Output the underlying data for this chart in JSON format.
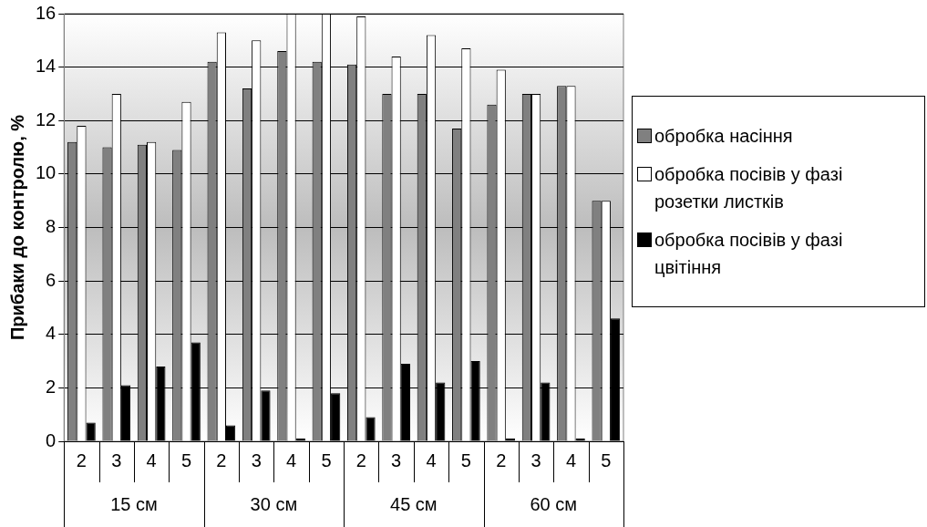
{
  "chart_data": {
    "type": "bar",
    "ylabel": "Прибаки до контролю, %",
    "categories": [
      "2",
      "3",
      "4",
      "5",
      "2",
      "3",
      "4",
      "5",
      "2",
      "3",
      "4",
      "5",
      "2",
      "3",
      "4",
      "5"
    ],
    "annotations": [
      "15 см",
      "30 см",
      "45 см",
      "60 см"
    ],
    "series": [
      {
        "name": "обробка насіння",
        "color": "#808080",
        "values": [
          11.2,
          11.0,
          11.1,
          10.9,
          14.2,
          13.2,
          14.6,
          14.2,
          14.1,
          13.0,
          13.0,
          11.7,
          12.6,
          13.0,
          13.3,
          9.0
        ]
      },
      {
        "name": "обробка посівів у фазі розетки листків",
        "color": "#ffffff",
        "values": [
          11.8,
          13.0,
          11.2,
          12.7,
          15.3,
          15.0,
          16.0,
          16.0,
          15.9,
          14.4,
          15.2,
          14.7,
          13.9,
          13.0,
          13.3,
          9.0
        ]
      },
      {
        "name": "обробка посівів у фазі цвітіння",
        "color": "#000000",
        "values": [
          0.7,
          2.1,
          2.8,
          3.7,
          0.6,
          1.9,
          0.1,
          1.8,
          0.9,
          2.9,
          2.2,
          3.0,
          0.1,
          2.2,
          0.1,
          4.6
        ]
      }
    ],
    "ylim": [
      0,
      16
    ],
    "yticks": [
      0,
      2,
      4,
      6,
      8,
      10,
      12,
      14,
      16
    ],
    "grid": "y",
    "legend": "right"
  }
}
